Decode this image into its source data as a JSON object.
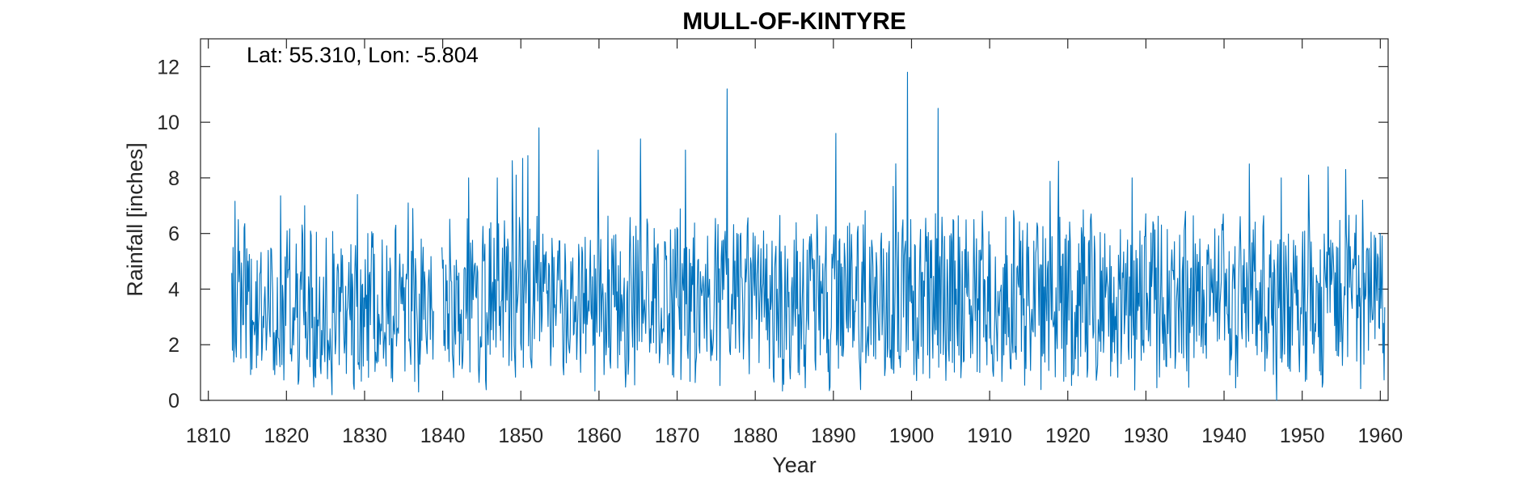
{
  "chart_data": {
    "type": "line",
    "title": "MULL-OF-KINTYRE",
    "annotation": "Lat: 55.310, Lon: -5.804",
    "xlabel": "Year",
    "ylabel": "Rainfall [inches]",
    "xlim": [
      1809,
      1961
    ],
    "ylim": [
      0,
      13
    ],
    "xticks": [
      1810,
      1820,
      1830,
      1840,
      1850,
      1860,
      1870,
      1880,
      1890,
      1900,
      1910,
      1920,
      1930,
      1940,
      1950,
      1960
    ],
    "yticks": [
      0,
      2,
      4,
      6,
      8,
      10,
      12
    ],
    "grid": false,
    "series": [
      {
        "color": "#0072BD",
        "sampling": "monthly",
        "segments": [
          {
            "start_year": 1813.0,
            "end_year": 1838.9,
            "typical_range": [
              1.0,
              5.5
            ],
            "peaks": [
              [
                1813.2,
                5.5
              ],
              [
                1813.8,
                6.5
              ],
              [
                1814.6,
                6.2
              ],
              [
                1820.1,
                6.1
              ],
              [
                1822.3,
                7.0
              ],
              [
                1825.8,
                0.2
              ],
              [
                1829.1,
                7.4
              ],
              [
                1830.4,
                6.0
              ],
              [
                1834.0,
                6.3
              ],
              [
                1835.6,
                7.1
              ],
              [
                1836.2,
                6.9
              ],
              [
                1836.9,
                0.3
              ]
            ]
          },
          {
            "start_year": 1839.9,
            "end_year": 1960.6,
            "typical_range": [
              1.2,
              6.0
            ],
            "peaks": [
              [
                1843.3,
                8.0
              ],
              [
                1847.0,
                8.0
              ],
              [
                1849.4,
                8.1
              ],
              [
                1850.2,
                8.7
              ],
              [
                1850.9,
                8.8
              ],
              [
                1852.3,
                9.8
              ],
              [
                1859.9,
                9.0
              ],
              [
                1865.3,
                9.4
              ],
              [
                1871.1,
                9.0
              ],
              [
                1876.4,
                11.2
              ],
              [
                1890.3,
                9.6
              ],
              [
                1899.5,
                11.8
              ],
              [
                1903.4,
                10.5
              ],
              [
                1918.8,
                8.6
              ],
              [
                1928.2,
                8.0
              ],
              [
                1943.2,
                8.5
              ],
              [
                1946.7,
                0.0
              ],
              [
                1947.3,
                8.0
              ],
              [
                1950.8,
                8.1
              ],
              [
                1953.3,
                8.4
              ],
              [
                1955.6,
                8.3
              ],
              [
                1957.7,
                7.2
              ]
            ]
          }
        ]
      }
    ]
  }
}
